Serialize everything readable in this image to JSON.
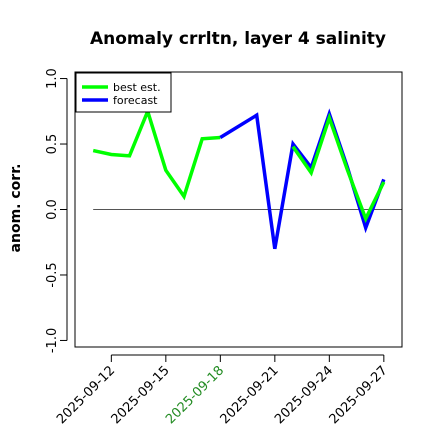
{
  "chart_data": {
    "type": "line",
    "title": "Anomaly crrltn, layer 4 salinity",
    "xlabel": "",
    "ylabel": "anom. corr.",
    "ylim": [
      -1.05,
      1.05
    ],
    "yticks": [
      "-1.0",
      "-0.5",
      "0.0",
      "0.5",
      "1.0"
    ],
    "x_range": [
      "2025-09-10",
      "2025-09-28"
    ],
    "xticks": [
      {
        "label": "2025-09-12",
        "date": "2025-09-12",
        "color": "#000000"
      },
      {
        "label": "2025-09-15",
        "date": "2025-09-15",
        "color": "#000000"
      },
      {
        "label": "2025-09-18",
        "date": "2025-09-18",
        "color": "#228B22"
      },
      {
        "label": "2025-09-21",
        "date": "2025-09-21",
        "color": "#000000"
      },
      {
        "label": "2025-09-24",
        "date": "2025-09-24",
        "color": "#000000"
      },
      {
        "label": "2025-09-27",
        "date": "2025-09-27",
        "color": "#000000"
      }
    ],
    "reference_line": 0,
    "grid": false,
    "legend": {
      "placement": "top-left"
    },
    "series": [
      {
        "name": "best est.",
        "color": "#00ff00",
        "points": [
          [
            "2025-09-11",
            0.45
          ],
          [
            "2025-09-12",
            0.42
          ],
          [
            "2025-09-13",
            0.41
          ],
          [
            "2025-09-14",
            0.75
          ],
          [
            "2025-09-15",
            0.3
          ],
          [
            "2025-09-16",
            0.1
          ],
          [
            "2025-09-17",
            0.54
          ],
          [
            "2025-09-18",
            0.55
          ]
        ]
      },
      {
        "name": "forecast",
        "color": "#0000ff",
        "points": [
          [
            "2025-09-18",
            0.55
          ],
          [
            "2025-09-20",
            0.72
          ],
          [
            "2025-09-21",
            -0.3
          ],
          [
            "2025-09-22",
            0.5
          ],
          [
            "2025-09-23",
            0.32
          ],
          [
            "2025-09-24",
            0.73
          ],
          [
            "2025-09-25",
            0.32
          ],
          [
            "2025-09-26",
            -0.14
          ],
          [
            "2025-09-27",
            0.23
          ]
        ]
      },
      {
        "name": "",
        "color": "#00ff00",
        "points": [
          [
            "2025-09-22",
            0.48
          ],
          [
            "2025-09-23",
            0.28
          ],
          [
            "2025-09-24",
            0.7
          ],
          [
            "2025-09-25",
            0.3
          ],
          [
            "2025-09-26",
            -0.07
          ],
          [
            "2025-09-27",
            0.21
          ]
        ]
      }
    ]
  }
}
